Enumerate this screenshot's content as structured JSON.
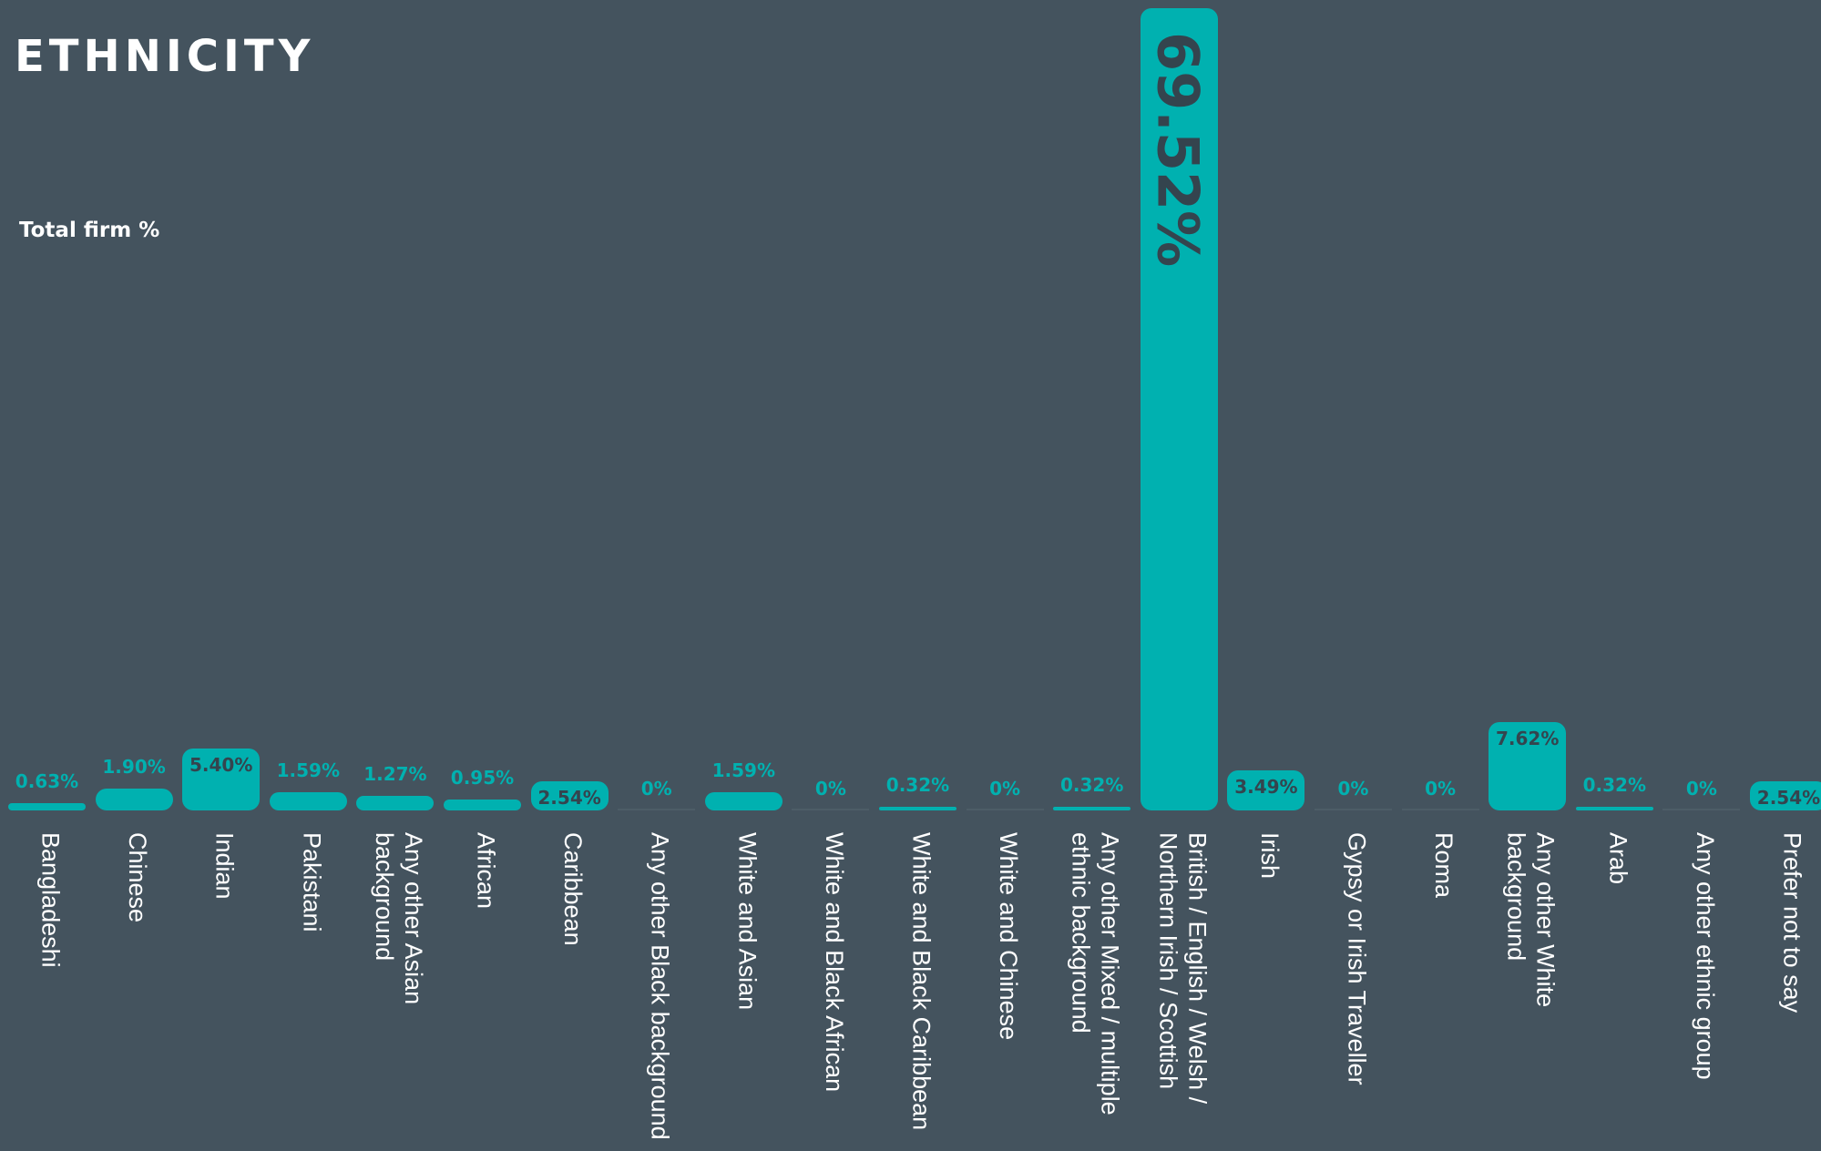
{
  "chart_data": {
    "type": "bar",
    "title": "ETHNICITY",
    "subtitle": "Total firm %",
    "color": "#00b1b0",
    "categories": [
      "Bangladeshi",
      "Chinese",
      "Indian",
      "Pakistani",
      "Any other Asian\nbackground",
      "African",
      "Caribbean",
      "Any other Black background",
      "White and Asian",
      "White and Black African",
      "White and Black Caribbean",
      "White and Chinese",
      "Any other Mixed / multiple\nethnic background",
      "British / English / Welsh /\nNorthern Irish / Scottish",
      "Irish",
      "Gypsy or Irish Traveller",
      "Roma",
      "Any other White\nbackground",
      "Arab",
      "Any other ethnic group",
      "Prefer not to say"
    ],
    "values": [
      0.63,
      1.9,
      5.4,
      1.59,
      1.27,
      0.95,
      2.54,
      0,
      1.59,
      0,
      0.32,
      0,
      0.32,
      69.52,
      3.49,
      0,
      0,
      7.62,
      0.32,
      0,
      2.54
    ],
    "value_labels": [
      "0.63%",
      "1.90%",
      "5.40%",
      "1.59%",
      "1.27%",
      "0.95%",
      "2.54%",
      "0%",
      "1.59%",
      "0%",
      "0.32%",
      "0%",
      "0.32%",
      "69.52%",
      "3.49%",
      "0%",
      "0%",
      "7.62%",
      "0.32%",
      "0%",
      "2.54%"
    ]
  }
}
